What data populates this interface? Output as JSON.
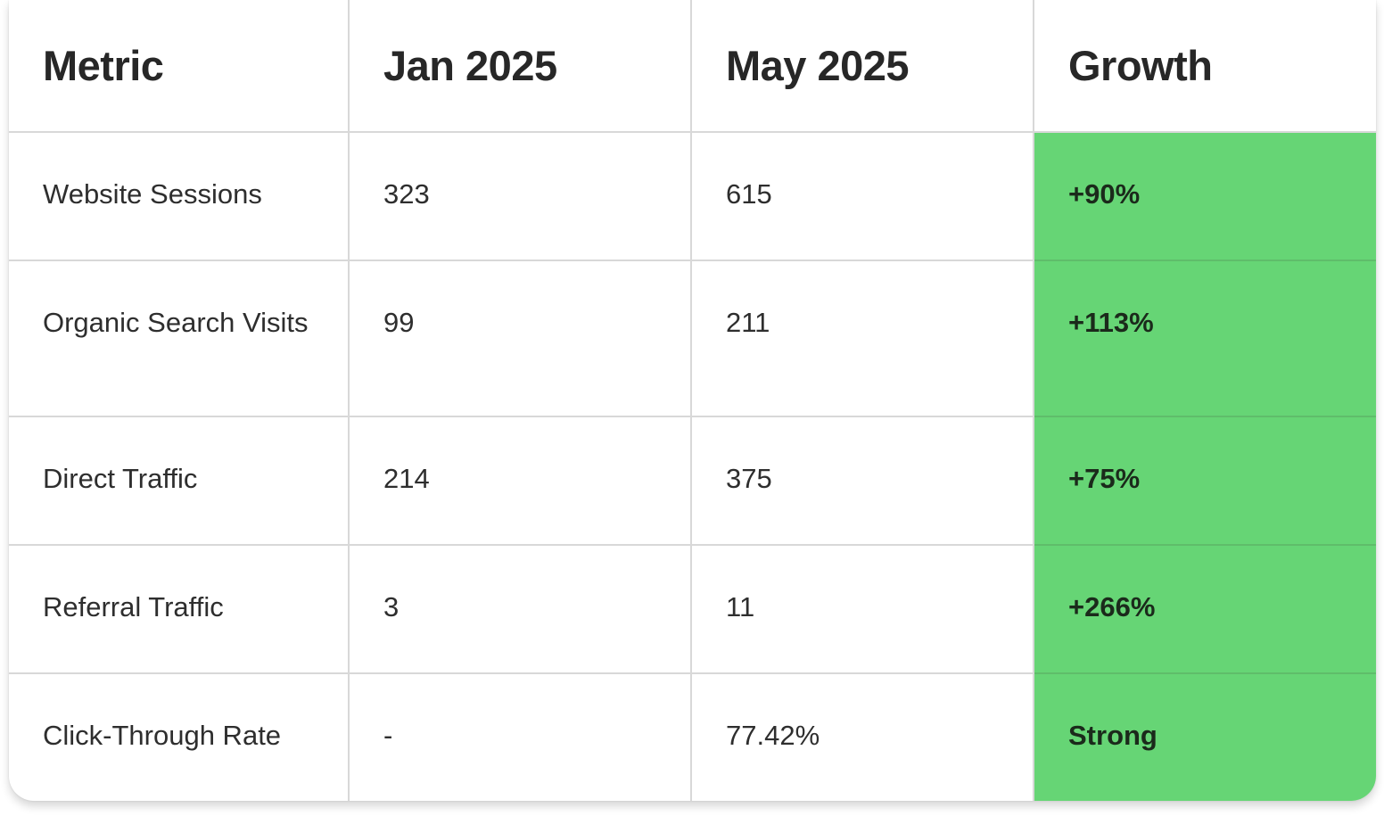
{
  "colors": {
    "growth_highlight": "#66d575",
    "grid_line": "#d8d8d8",
    "text": "#2b2b2b"
  },
  "table": {
    "headers": [
      "Metric",
      "Jan 2025",
      "May 2025",
      "Growth"
    ],
    "rows": [
      {
        "metric": "Website Sessions",
        "jan": "323",
        "may": "615",
        "growth": "+90%"
      },
      {
        "metric": "Organic Search Visits",
        "jan": "99",
        "may": "211",
        "growth": "+113%"
      },
      {
        "metric": "Direct Traffic",
        "jan": "214",
        "may": "375",
        "growth": "+75%"
      },
      {
        "metric": "Referral Traffic",
        "jan": "3",
        "may": "11",
        "growth": "+266%"
      },
      {
        "metric": "Click-Through Rate",
        "jan": "-",
        "may": "77.42%",
        "growth": "Strong"
      }
    ]
  }
}
